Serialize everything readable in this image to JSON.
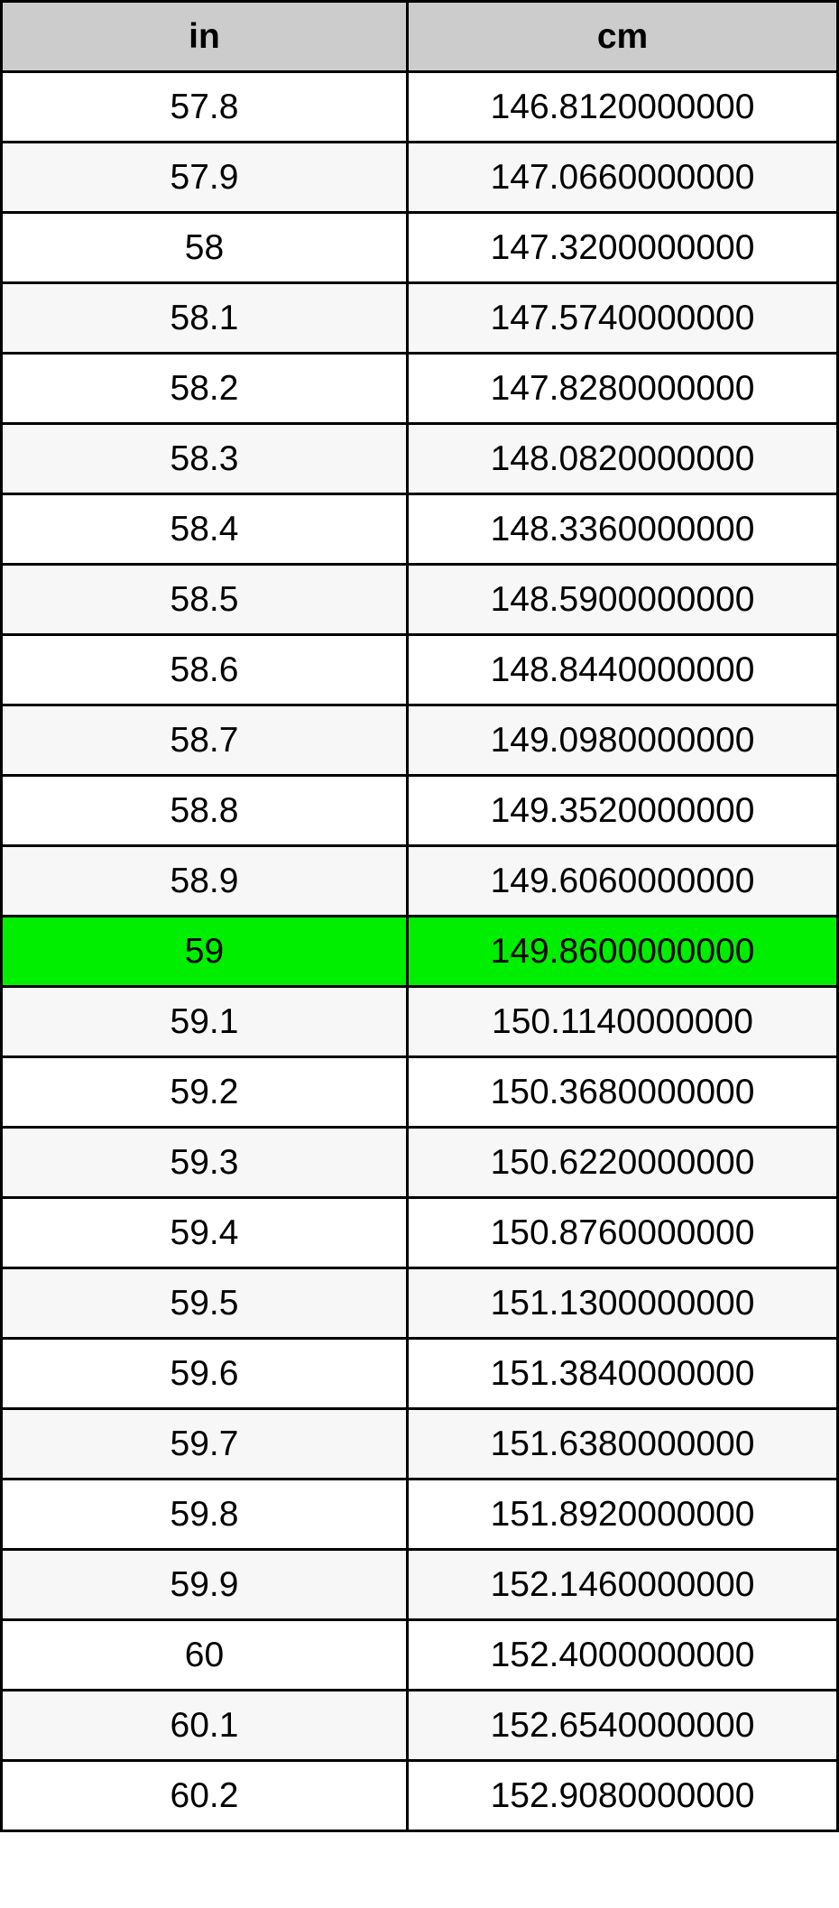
{
  "table": {
    "headers": [
      "in",
      "cm"
    ],
    "highlight_color": "#00ee00",
    "highlighted_row": "59",
    "rows": [
      [
        "57.8",
        "146.8120000000"
      ],
      [
        "57.9",
        "147.0660000000"
      ],
      [
        "58",
        "147.3200000000"
      ],
      [
        "58.1",
        "147.5740000000"
      ],
      [
        "58.2",
        "147.8280000000"
      ],
      [
        "58.3",
        "148.0820000000"
      ],
      [
        "58.4",
        "148.3360000000"
      ],
      [
        "58.5",
        "148.5900000000"
      ],
      [
        "58.6",
        "148.8440000000"
      ],
      [
        "58.7",
        "149.0980000000"
      ],
      [
        "58.8",
        "149.3520000000"
      ],
      [
        "58.9",
        "149.6060000000"
      ],
      [
        "59",
        "149.8600000000"
      ],
      [
        "59.1",
        "150.1140000000"
      ],
      [
        "59.2",
        "150.3680000000"
      ],
      [
        "59.3",
        "150.6220000000"
      ],
      [
        "59.4",
        "150.8760000000"
      ],
      [
        "59.5",
        "151.1300000000"
      ],
      [
        "59.6",
        "151.3840000000"
      ],
      [
        "59.7",
        "151.6380000000"
      ],
      [
        "59.8",
        "151.8920000000"
      ],
      [
        "59.9",
        "152.1460000000"
      ],
      [
        "60",
        "152.4000000000"
      ],
      [
        "60.1",
        "152.6540000000"
      ],
      [
        "60.2",
        "152.9080000000"
      ]
    ]
  }
}
